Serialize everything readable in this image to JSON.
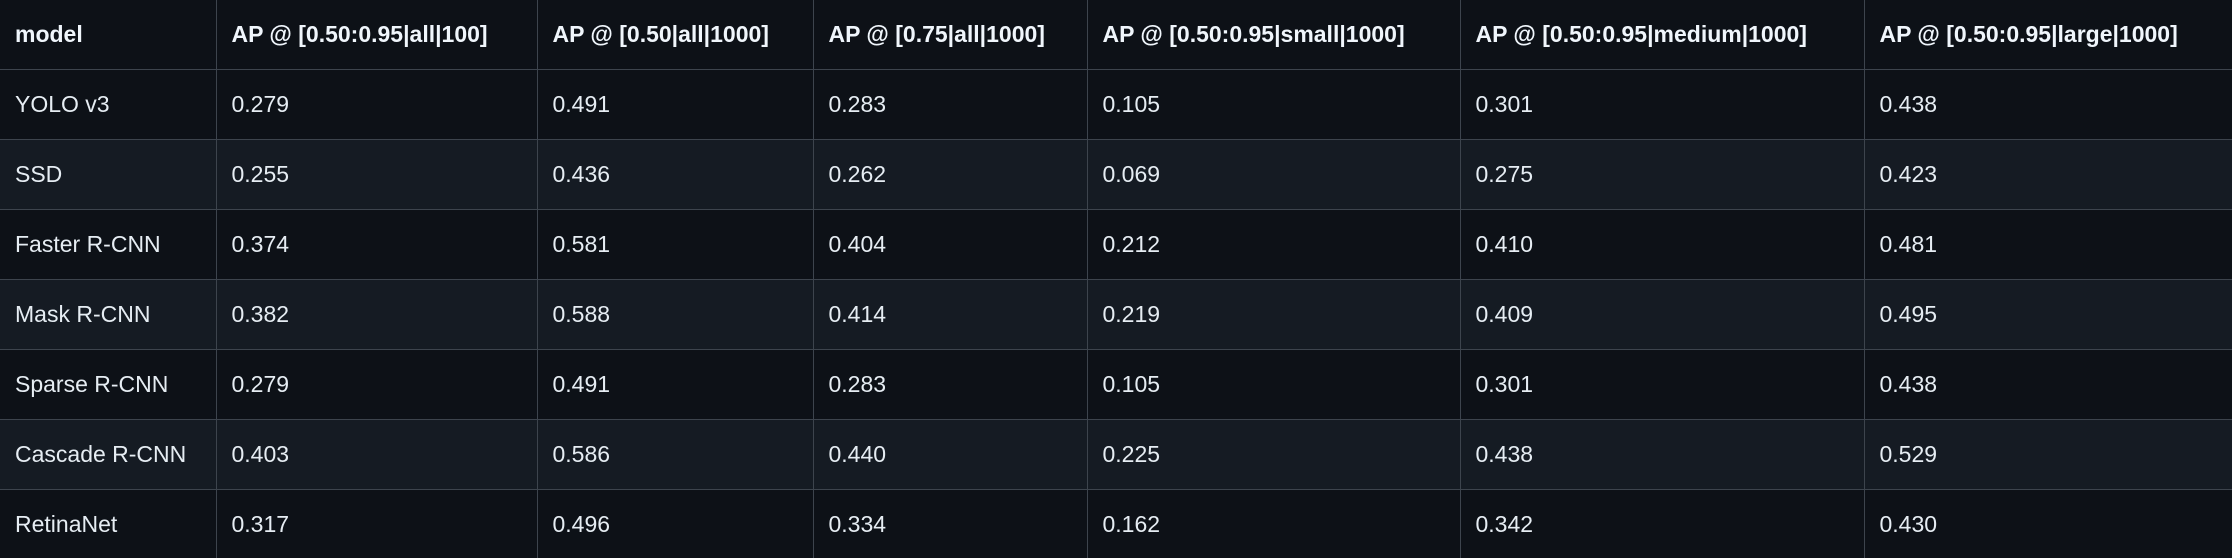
{
  "table": {
    "headers": [
      "model",
      "AP @ [0.50:0.95|all|100]",
      "AP @ [0.50|all|1000]",
      "AP @ [0.75|all|1000]",
      "AP @ [0.50:0.95|small|1000]",
      "AP @ [0.50:0.95|medium|1000]",
      "AP @ [0.50:0.95|large|1000]"
    ],
    "rows": [
      [
        "YOLO v3",
        "0.279",
        "0.491",
        "0.283",
        "0.105",
        "0.301",
        "0.438"
      ],
      [
        "SSD",
        "0.255",
        "0.436",
        "0.262",
        "0.069",
        "0.275",
        "0.423"
      ],
      [
        "Faster R-CNN",
        "0.374",
        "0.581",
        "0.404",
        "0.212",
        "0.410",
        "0.481"
      ],
      [
        "Mask R-CNN",
        "0.382",
        "0.588",
        "0.414",
        "0.219",
        "0.409",
        "0.495"
      ],
      [
        "Sparse R-CNN",
        "0.279",
        "0.491",
        "0.283",
        "0.105",
        "0.301",
        "0.438"
      ],
      [
        "Cascade R-CNN",
        "0.403",
        "0.586",
        "0.440",
        "0.225",
        "0.438",
        "0.529"
      ],
      [
        "RetinaNet",
        "0.317",
        "0.496",
        "0.334",
        "0.162",
        "0.342",
        "0.430"
      ]
    ]
  },
  "colors": {
    "background": "#0d1117",
    "row_alt": "#151b23",
    "border": "#3d444d",
    "text": "#e6edf3"
  }
}
